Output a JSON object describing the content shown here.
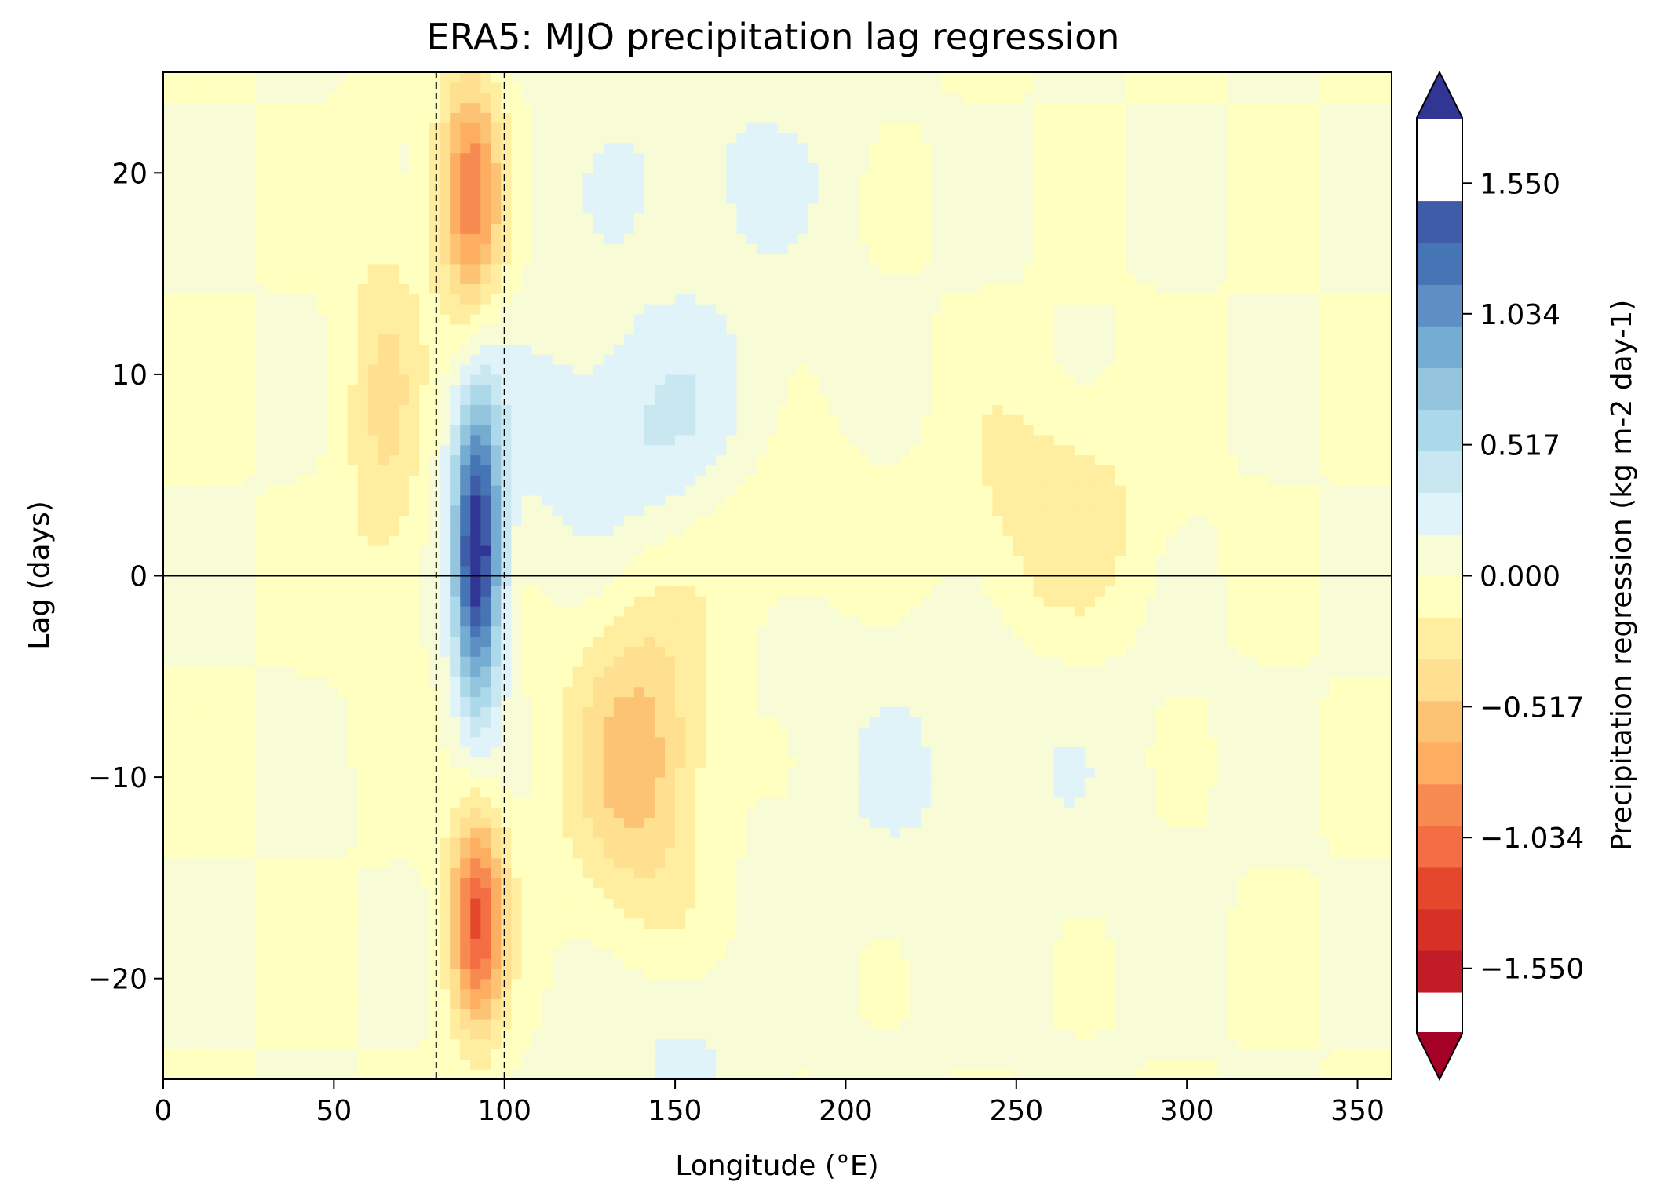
{
  "chart_data": {
    "type": "heatmap",
    "title": "ERA5: MJO precipitation lag regression",
    "xlabel": "Longitude (°E)",
    "ylabel": "Lag (days)",
    "xlim": [
      0,
      360
    ],
    "ylim": [
      -25,
      25
    ],
    "xticks": [
      0,
      50,
      100,
      150,
      200,
      250,
      300,
      350
    ],
    "yticks": [
      -20,
      -10,
      0,
      10,
      20
    ],
    "colorbar": {
      "label": "Precipitation regression (kg m-2 day-1)",
      "range": [
        -1.808,
        1.808
      ],
      "levels": 22,
      "ticks": [
        -1.55,
        -1.034,
        -0.517,
        0.0,
        0.517,
        1.034,
        1.55
      ],
      "tick_labels": [
        "−1.550",
        "−1.034",
        "−0.517",
        "0.000",
        "0.517",
        "1.034",
        "1.550"
      ],
      "extend": "both",
      "colormap": "RdYlBu",
      "colors": [
        "#a50026",
        "#c21c27",
        "#d73027",
        "#e4472c",
        "#f46d43",
        "#f78a51",
        "#fdae61",
        "#fdc374",
        "#fee090",
        "#ffeda0",
        "#ffffbf",
        "#f7fbd6",
        "#e0f3f8",
        "#c9e7f1",
        "#abd9e9",
        "#95c5de",
        "#74add1",
        "#5d8fc2",
        "#4575b4",
        "#3e5ca8",
        "#313695"
      ]
    },
    "reference_lines": {
      "dashed_vertical": [
        80,
        100
      ],
      "solid_horizontal": [
        0
      ]
    },
    "features": [
      {
        "name": "enhanced precipitation core",
        "lon": 92,
        "lag": 1,
        "value": 1.7,
        "lon_halfwidth": 7,
        "lag_halfwidth": 7
      },
      {
        "name": "suppressed precipitation, negative lag",
        "lon": 92,
        "lag": -17,
        "value": -1.15,
        "lon_halfwidth": 8,
        "lag_halfwidth": 5.5
      },
      {
        "name": "suppressed precipitation, positive lag",
        "lon": 90,
        "lag": 19,
        "value": -0.95,
        "lon_halfwidth": 9,
        "lag_halfwidth": 6
      },
      {
        "name": "eastward-propagating positive band",
        "lon": 140,
        "lag": 7,
        "value": 0.35,
        "lon_halfwidth": 45,
        "lag_halfwidth": 6
      },
      {
        "name": "eastward negative band",
        "lon": 140,
        "lag": -9,
        "value": -0.6,
        "lon_halfwidth": 20,
        "lag_halfwidth": 8
      },
      {
        "name": "western negative",
        "lon": 65,
        "lag": 8,
        "value": -0.35,
        "lon_halfwidth": 12,
        "lag_halfwidth": 10
      },
      {
        "name": "upper-central negative",
        "lon": 180,
        "lag": 3,
        "value": -0.25,
        "lon_halfwidth": 25,
        "lag_halfwidth": 5
      },
      {
        "name": "eastern weak negative",
        "lon": 260,
        "lag": 3,
        "value": -0.3,
        "lon_halfwidth": 30,
        "lag_halfwidth": 6
      },
      {
        "name": "upper weak positive",
        "lon": 160,
        "lag": 20,
        "value": 0.2,
        "lon_halfwidth": 40,
        "lag_halfwidth": 6
      },
      {
        "name": "lower-right weak positive",
        "lon": 230,
        "lag": -10,
        "value": 0.15,
        "lon_halfwidth": 60,
        "lag_halfwidth": 10
      },
      {
        "name": "lower weak positive",
        "lon": 150,
        "lag": -23,
        "value": 0.2,
        "lon_halfwidth": 25,
        "lag_halfwidth": 4
      }
    ]
  }
}
